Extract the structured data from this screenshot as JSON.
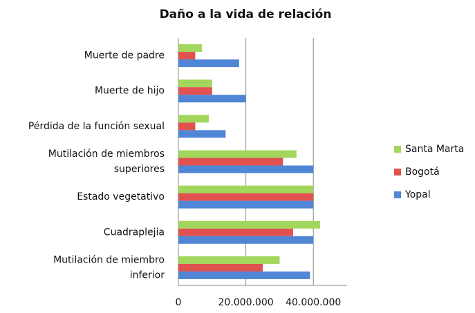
{
  "chart_data": {
    "type": "bar",
    "orientation": "horizontal",
    "title": "Daño a la vida de relación",
    "categories": [
      "Muerte de padre",
      "Muerte de hijo",
      "Pérdida de la función sexual",
      "Mutilación de miembros superiores",
      "Estado vegetativo",
      "Cuadraplejia",
      "Mutilación de miembro inferior"
    ],
    "series": [
      {
        "name": "Santa Marta",
        "color": "#a3d65c",
        "values": [
          7000000,
          10000000,
          9000000,
          35000000,
          40000000,
          42000000,
          30000000
        ]
      },
      {
        "name": "Bogotá",
        "color": "#e0524f",
        "values": [
          5000000,
          10000000,
          5000000,
          31000000,
          40000000,
          34000000,
          25000000
        ]
      },
      {
        "name": "Yopal",
        "color": "#5086d6",
        "values": [
          18000000,
          20000000,
          14000000,
          40000000,
          40000000,
          40000000,
          39000000
        ]
      }
    ],
    "xlim": [
      0,
      50000000
    ],
    "xticks": [
      0,
      {
        "value": 20000000,
        "label": "20.000.000"
      },
      {
        "value": 40000000,
        "label": "40.000.000"
      }
    ],
    "grid": true,
    "legend": "right"
  }
}
